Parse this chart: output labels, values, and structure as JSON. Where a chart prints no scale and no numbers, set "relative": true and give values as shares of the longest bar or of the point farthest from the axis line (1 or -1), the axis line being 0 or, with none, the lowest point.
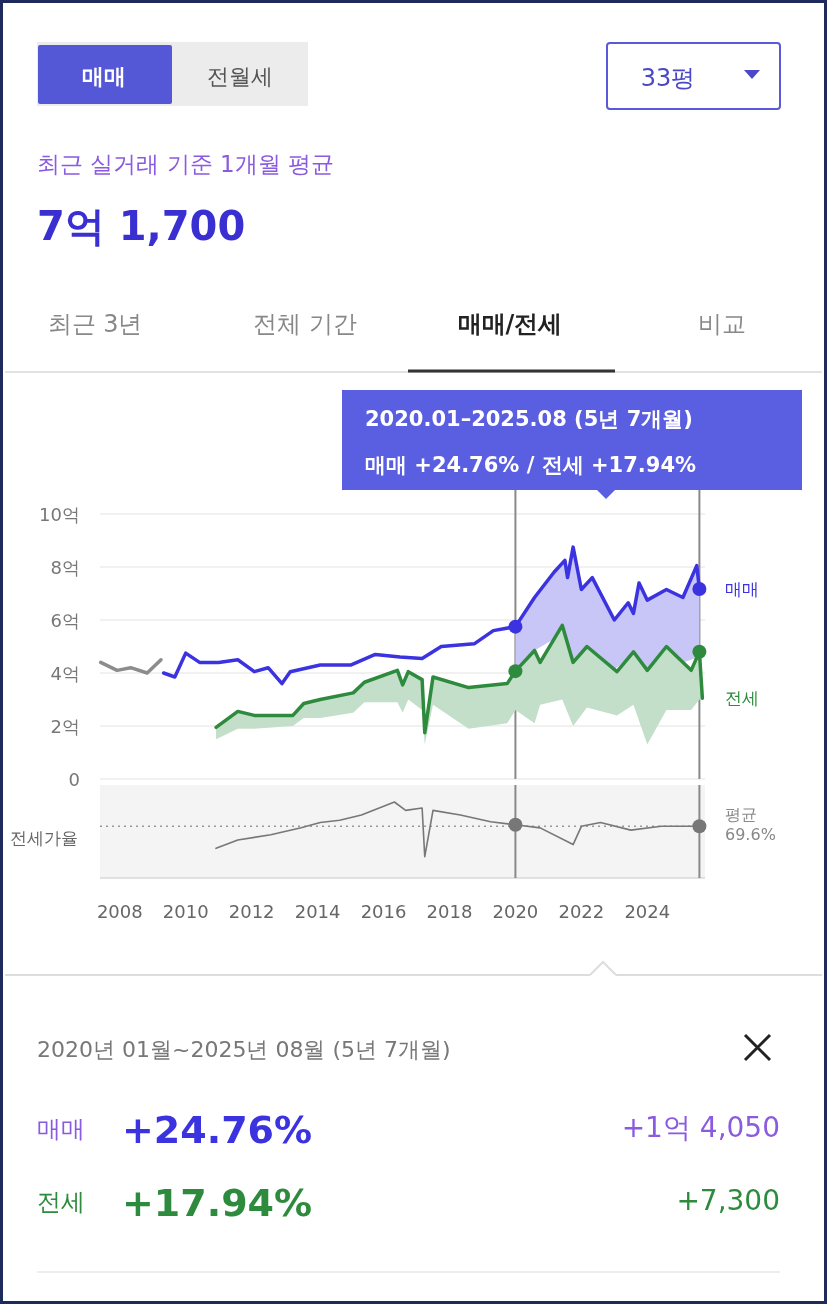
{
  "chart_data": [
    {
      "type": "line",
      "title": "7억 1,700",
      "annotations": [
        "매매",
        "전월세",
        "33평",
        "최근 3년",
        "전체 기간",
        "매매/전세",
        "비교",
        "매매 +24.76%  /  전세 +17.94%",
        "2020년 01월~2025년 08월 (5년 7개월)",
        "매매",
        "+24.76%",
        "+1억 4,050",
        "전세",
        "+17.94%",
        "+7,300",
        "최근 실거래 기준 1개월 평균",
        "2020.01–2025.08 (5년 7개월)"
      ],
      "xlim": [
        2007.4,
        2025.75
      ],
      "ylim": [
        0,
        10
      ],
      "yticks": [
        {
          "value": 10,
          "label": "10억"
        },
        {
          "value": 8,
          "label": "8억"
        },
        {
          "value": 6,
          "label": "6억"
        },
        {
          "value": 4,
          "label": "4억"
        },
        {
          "value": 2,
          "label": "2억"
        },
        0
      ],
      "grid": "y",
      "tick_labels": "y",
      "line_style": "solid",
      "ref_lines": [
        {
          "axis": "x",
          "value": 2020.0,
          "color": "#8a8a8a"
        },
        {
          "axis": "x",
          "value": 2025.58,
          "color": "#8a8a8a"
        }
      ],
      "series": [
        {
          "color": "#8c8c8c",
          "x": [
            2007.42,
            2007.92,
            2008.33,
            2008.83,
            2009.25
          ],
          "values": [
            4.4,
            4.1,
            4.2,
            4.0,
            4.5
          ]
        },
        {
          "name": "매매",
          "color": "#3b32e0",
          "x": [
            2009.33,
            2009.67,
            2010.0,
            2010.42,
            2011.0,
            2011.58,
            2012.08,
            2012.5,
            2012.92,
            2013.17,
            2014.08,
            2015.0,
            2015.75,
            2016.5,
            2017.17,
            2017.75,
            2018.75,
            2019.33,
            2020.0,
            2020.58,
            2021.17,
            2021.5,
            2021.58,
            2021.75,
            2022.0,
            2022.33,
            2023.0,
            2023.42,
            2023.58,
            2023.75,
            2024.0,
            2024.58,
            2025.08,
            2025.5,
            2025.58
          ],
          "values": [
            4.0,
            3.85,
            4.75,
            4.4,
            4.4,
            4.5,
            4.05,
            4.2,
            3.6,
            4.05,
            4.3,
            4.3,
            4.7,
            4.6,
            4.55,
            5.0,
            5.1,
            5.6,
            5.75,
            6.85,
            7.8,
            8.25,
            7.6,
            8.75,
            7.15,
            7.6,
            6.0,
            6.65,
            6.25,
            7.4,
            6.75,
            7.15,
            6.85,
            8.05,
            7.17
          ],
          "lower": [
            null,
            null,
            null,
            null,
            null,
            null,
            null,
            null,
            null,
            null,
            null,
            null,
            null,
            null,
            null,
            null,
            null,
            null,
            4.07,
            4.85,
            5.28,
            5.46,
            5.12,
            4.4,
            4.76,
            4.83,
            4.13,
            4.56,
            4.8,
            4.52,
            4.1,
            5.0,
            4.4,
            4.58,
            4.8
          ],
          "upper": [
            null,
            null,
            null,
            null,
            null,
            null,
            null,
            null,
            null,
            null,
            null,
            null,
            null,
            null,
            null,
            null,
            null,
            null,
            5.75,
            6.85,
            7.8,
            8.25,
            7.6,
            8.75,
            7.15,
            7.6,
            6.0,
            6.65,
            6.25,
            7.4,
            6.75,
            7.15,
            6.85,
            8.05,
            7.17
          ]
        },
        {
          "name": "전세",
          "color": "#2e8b3e",
          "x": [
            2010.92,
            2011.58,
            2012.08,
            2013.25,
            2013.58,
            2014.08,
            2015.08,
            2015.42,
            2016.42,
            2016.58,
            2016.75,
            2017.17,
            2017.25,
            2017.5,
            2018.58,
            2019.75,
            2020.0,
            2020.58,
            2020.75,
            2021.42,
            2021.75,
            2022.17,
            2023.08,
            2023.58,
            2024.0,
            2024.58,
            2025.33,
            2025.58,
            2025.67
          ],
          "values": [
            1.95,
            2.55,
            2.4,
            2.4,
            2.85,
            3.0,
            3.25,
            3.65,
            4.1,
            3.55,
            4.05,
            3.75,
            1.75,
            3.85,
            3.45,
            3.6,
            4.07,
            4.85,
            4.4,
            5.8,
            4.4,
            5.0,
            4.05,
            4.8,
            4.1,
            5.0,
            4.1,
            4.8,
            3.05
          ],
          "lower": [
            1.5,
            1.9,
            1.9,
            2.0,
            2.3,
            2.3,
            2.5,
            2.9,
            2.9,
            2.5,
            3.0,
            2.6,
            1.3,
            2.8,
            1.9,
            2.1,
            2.6,
            2.1,
            2.8,
            3.0,
            2.0,
            2.7,
            2.4,
            2.8,
            1.3,
            2.6,
            2.6,
            3.0,
            3.0
          ],
          "upper": [
            1.95,
            2.55,
            2.4,
            2.4,
            2.85,
            3.0,
            3.25,
            3.65,
            4.1,
            3.55,
            4.05,
            3.75,
            1.75,
            3.85,
            3.45,
            3.6,
            4.07,
            4.85,
            4.4,
            5.8,
            4.4,
            5.0,
            4.05,
            4.8,
            4.1,
            5.0,
            4.1,
            4.8,
            3.05
          ]
        }
      ]
    },
    {
      "type": "line",
      "relative": true,
      "ylabel": "전세가율",
      "xlim": [
        2007.4,
        2025.75
      ],
      "xticks": [
        2008,
        2010,
        2012,
        2014,
        2016,
        2018,
        2020,
        2022,
        2024
      ],
      "tick_labels": "x",
      "ref_lines": [
        {
          "axis": "y",
          "value": 0.68,
          "label": "평균 69.6%",
          "line_style": "dotted"
        },
        {
          "axis": "x",
          "value": 2020.0,
          "color": "#8a8a8a"
        },
        {
          "axis": "x",
          "value": 2025.58,
          "color": "#8a8a8a"
        }
      ],
      "series": [
        {
          "color": "#777777",
          "x": [
            2010.92,
            2011.58,
            2012.58,
            2013.5,
            2014.08,
            2014.67,
            2015.33,
            2016.33,
            2016.67,
            2017.17,
            2017.25,
            2017.5,
            2018.33,
            2019.25,
            2020.0,
            2020.75,
            2021.75,
            2022.0,
            2022.58,
            2023.5,
            2024.42,
            2025.58
          ],
          "values": [
            0.39,
            0.5,
            0.57,
            0.66,
            0.73,
            0.76,
            0.83,
            1.0,
            0.89,
            0.92,
            0.28,
            0.89,
            0.83,
            0.74,
            0.7,
            0.66,
            0.44,
            0.68,
            0.73,
            0.63,
            0.68,
            0.68
          ]
        }
      ]
    }
  ]
}
